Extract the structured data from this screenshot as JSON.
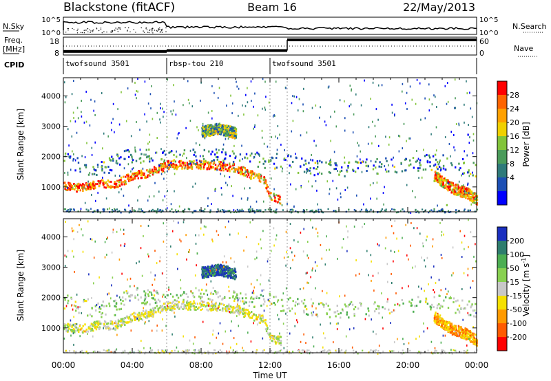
{
  "header": {
    "title": "Blackstone (fitACF)",
    "beam": "Beam 16",
    "date": "22/May/2013"
  },
  "strips": {
    "nsky": {
      "label": "N.Sky",
      "scale_top": "10^5",
      "scale_bottom": "10^0",
      "right_label": "N.Search",
      "right_top": "10^5",
      "right_bottom": "10^0"
    },
    "freq": {
      "label_line1": "Freq.",
      "label_line2": "[MHz]",
      "scale_top": "18",
      "scale_bottom": "8",
      "right_label": "Nave",
      "right_top": "60",
      "right_bottom": "0"
    },
    "cpid": {
      "label": "CPID",
      "segments": [
        {
          "name": "twofsound 3501",
          "start_hour": 0,
          "end_hour": 6
        },
        {
          "name": "rbsp-tou 210",
          "start_hour": 6,
          "end_hour": 12
        },
        {
          "name": "twofsound 3501",
          "start_hour": 12,
          "end_hour": 24
        }
      ]
    }
  },
  "axes": {
    "x_label": "Time UT",
    "x_ticks": [
      "00:00",
      "04:00",
      "08:00",
      "12:00",
      "16:00",
      "20:00",
      "00:00"
    ],
    "y_label": "Slant Range [km]",
    "y_ticks": [
      "1000",
      "2000",
      "3000",
      "4000"
    ]
  },
  "colorbars": {
    "power": {
      "title": "Power [dB]",
      "ticks": [
        "4",
        "8",
        "12",
        "16",
        "20",
        "24",
        "28"
      ],
      "colors": [
        "#0000ff",
        "#1c4fb4",
        "#2e7a7a",
        "#4a9b5a",
        "#82c43a",
        "#f0d000",
        "#ffa000",
        "#ff6400",
        "#ff0000"
      ]
    },
    "velocity": {
      "title_main": "Velocity [m s",
      "title_sup": "-1",
      "title_end": "]",
      "ticks": [
        "200",
        "100",
        "50",
        "15",
        "-15",
        "-50",
        "-100",
        "-200"
      ],
      "colors": [
        "#1a2fbf",
        "#2e7d6e",
        "#4cae52",
        "#88d050",
        "#c8c8c8",
        "#f5e000",
        "#ff9a00",
        "#ff5a00",
        "#ff0000"
      ]
    }
  },
  "chart_data": {
    "type": "heatmap",
    "x_range_hours": [
      0,
      24
    ],
    "y_range_km": [
      180,
      4600
    ],
    "power_range_db": [
      0,
      30
    ],
    "velocity_range_ms": [
      -200,
      200
    ],
    "mode_change_hours": [
      6,
      12,
      13
    ],
    "freq_mhz": [
      {
        "start_hour": 0,
        "end_hour": 6,
        "value": 10
      },
      {
        "start_hour": 6,
        "end_hour": 13,
        "value": 10.5
      },
      {
        "start_hour": 13,
        "end_hour": 24,
        "value": 16.5
      }
    ],
    "echo_bands": [
      {
        "name": "main-band",
        "points": [
          [
            0,
            1050
          ],
          [
            1,
            1000
          ],
          [
            2,
            1120
          ],
          [
            3,
            1120
          ],
          [
            4,
            1380
          ],
          [
            5,
            1500
          ],
          [
            6,
            1750
          ],
          [
            7,
            1770
          ],
          [
            8,
            1760
          ],
          [
            9,
            1730
          ],
          [
            10,
            1650
          ],
          [
            11,
            1400
          ],
          [
            11.6,
            1300
          ],
          [
            12,
            700
          ],
          [
            12.6,
            600
          ]
        ],
        "power": 24,
        "velocity": -10
      },
      {
        "name": "upper-band",
        "points": [
          [
            0,
            1900
          ],
          [
            2,
            1600
          ],
          [
            4,
            2100
          ],
          [
            6,
            1950
          ],
          [
            8,
            2050
          ],
          [
            10,
            2000
          ],
          [
            12,
            1900
          ],
          [
            14,
            1700
          ],
          [
            16,
            1600
          ],
          [
            18,
            1700
          ],
          [
            20,
            1800
          ],
          [
            22,
            1850
          ],
          [
            24,
            1600
          ]
        ],
        "power": 8,
        "velocity": 30
      },
      {
        "name": "high-cluster",
        "points": [
          [
            8,
            2850
          ],
          [
            9,
            2950
          ],
          [
            10,
            2800
          ]
        ],
        "power": 12,
        "velocity": 150
      },
      {
        "name": "late-low-band",
        "points": [
          [
            21.5,
            1400
          ],
          [
            22.5,
            1000
          ],
          [
            23.5,
            800
          ],
          [
            24,
            600
          ]
        ],
        "power": 22,
        "velocity": -80
      }
    ]
  }
}
